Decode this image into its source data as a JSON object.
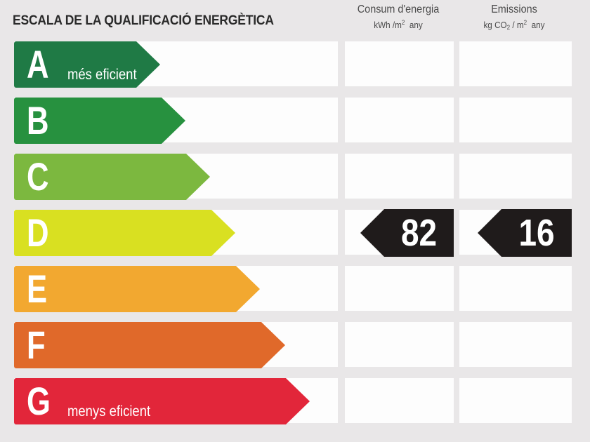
{
  "title": "ESCALA DE LA QUALIFICACIÓ ENERGÈTICA",
  "columns": {
    "energy": {
      "title": "Consum d'energia",
      "unit_prefix": "kWh /m",
      "unit_sup": "2",
      "unit_suffix": "  any"
    },
    "emissions": {
      "title": "Emissions",
      "unit_a": "kg CO",
      "unit_sub": "2",
      "unit_b": " / m",
      "unit_sup": "2",
      "unit_c": "  any"
    }
  },
  "classes": [
    {
      "letter": "A",
      "label": "més eficient",
      "color": "#1f7a45"
    },
    {
      "letter": "B",
      "label": "",
      "color": "#27913f"
    },
    {
      "letter": "C",
      "label": "",
      "color": "#7cb83f"
    },
    {
      "letter": "D",
      "label": "",
      "color": "#d9e021"
    },
    {
      "letter": "E",
      "label": "",
      "color": "#f2a830"
    },
    {
      "letter": "F",
      "label": "",
      "color": "#e0692a"
    },
    {
      "letter": "G",
      "label": "menys eficient",
      "color": "#e2263a"
    }
  ],
  "rating": {
    "class": "D",
    "energy_value": "82",
    "emissions_value": "16"
  }
}
